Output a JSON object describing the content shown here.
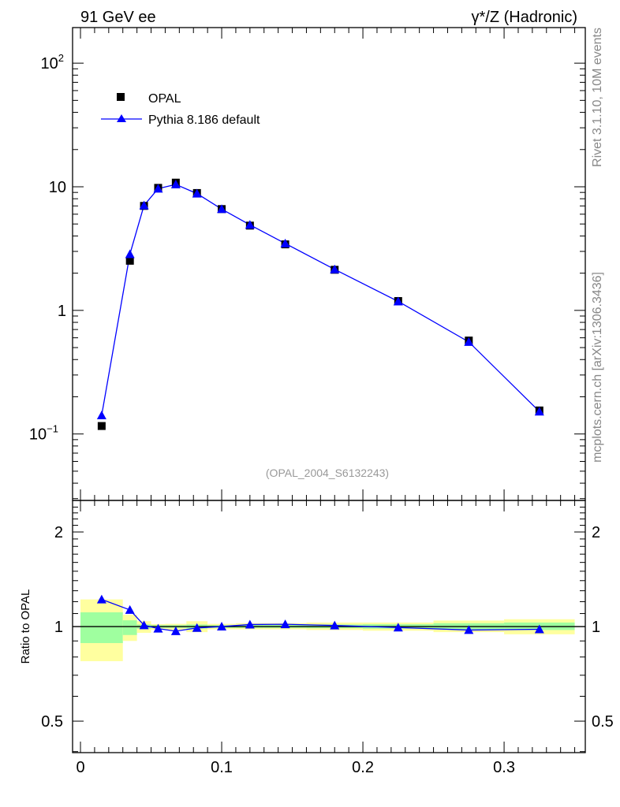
{
  "chart_data": {
    "type": "line",
    "title_left": "91 GeV ee",
    "title_right": "γ*/Z (Hadronic)",
    "side_label_1": "Rivet 3.1.10,  10M events",
    "side_label_2": "mcplots.cern.ch [arXiv:1306.3436]",
    "analysis_label": "(OPAL_2004_S6132243)",
    "ratio_ylabel": "Ratio to OPAL",
    "xlim": [
      -0.0056,
      0.3575
    ],
    "ylim": [
      0.029,
      194
    ],
    "ratio_ylim": [
      0.397,
      2.52
    ],
    "x_ticks": [
      {
        "v": 0,
        "label": "0"
      },
      {
        "v": 0.1,
        "label": "0.1"
      },
      {
        "v": 0.2,
        "label": "0.2"
      },
      {
        "v": 0.3,
        "label": "0.3"
      }
    ],
    "y_ticks": [
      {
        "v": 0.1,
        "label": "10",
        "exp": "−1"
      },
      {
        "v": 1,
        "label": "1",
        "exp": ""
      },
      {
        "v": 10,
        "label": "10",
        "exp": ""
      },
      {
        "v": 100,
        "label": "10",
        "exp": "2"
      }
    ],
    "ratio_ticks": [
      {
        "v": 0.5,
        "label": "0.5"
      },
      {
        "v": 1,
        "label": "1"
      },
      {
        "v": 2,
        "label": "2"
      }
    ],
    "legend": [
      {
        "name": "OPAL",
        "marker": "square",
        "color": "#000000"
      },
      {
        "name": "Pythia 8.186 default",
        "marker": "triangle",
        "color": "#0000ff"
      }
    ],
    "bins": [
      [
        0,
        0.03
      ],
      [
        0.03,
        0.04
      ],
      [
        0.04,
        0.05
      ],
      [
        0.05,
        0.06
      ],
      [
        0.06,
        0.075
      ],
      [
        0.075,
        0.09
      ],
      [
        0.09,
        0.11
      ],
      [
        0.11,
        0.13
      ],
      [
        0.13,
        0.16
      ],
      [
        0.16,
        0.2
      ],
      [
        0.2,
        0.25
      ],
      [
        0.25,
        0.3
      ],
      [
        0.3,
        0.35
      ]
    ],
    "x": [
      0.015,
      0.035,
      0.045,
      0.055,
      0.0675,
      0.0825,
      0.1,
      0.12,
      0.145,
      0.18,
      0.225,
      0.275,
      0.325
    ],
    "series": [
      {
        "name": "OPAL",
        "values": [
          0.116,
          2.52,
          7.0,
          9.8,
          10.8,
          8.9,
          6.6,
          4.85,
          3.42,
          2.13,
          1.19,
          0.57,
          0.155
        ]
      },
      {
        "name": "Pythia 8.186 default",
        "ratio": [
          1.22,
          1.13,
          1.01,
          0.985,
          0.967,
          0.99,
          1.0,
          1.015,
          1.017,
          1.008,
          0.993,
          0.975,
          0.98
        ]
      }
    ],
    "band_yellow": [
      [
        0.776,
        1.22
      ],
      [
        0.9,
        1.09
      ],
      [
        0.955,
        1.04
      ],
      [
        0.977,
        1.018
      ],
      [
        0.975,
        1.02
      ],
      [
        0.96,
        1.04
      ],
      [
        0.98,
        1.02
      ],
      [
        0.98,
        1.025
      ],
      [
        0.98,
        1.025
      ],
      [
        0.975,
        1.03
      ],
      [
        0.97,
        1.03
      ],
      [
        0.96,
        1.045
      ],
      [
        0.945,
        1.055
      ]
    ],
    "band_green": [
      [
        0.886,
        1.11
      ],
      [
        0.94,
        1.047
      ],
      [
        0.985,
        1.015
      ],
      [
        0.99,
        1.01
      ],
      [
        0.99,
        1.01
      ],
      [
        0.985,
        1.015
      ],
      [
        0.99,
        1.01
      ],
      [
        0.99,
        1.012
      ],
      [
        0.99,
        1.012
      ],
      [
        0.988,
        1.015
      ],
      [
        0.985,
        1.017
      ],
      [
        0.98,
        1.025
      ],
      [
        0.975,
        1.03
      ]
    ],
    "colors": {
      "data": "#000000",
      "mc": "#0000ff",
      "yellow": "#ffff9f",
      "green": "#9fff9f"
    }
  }
}
